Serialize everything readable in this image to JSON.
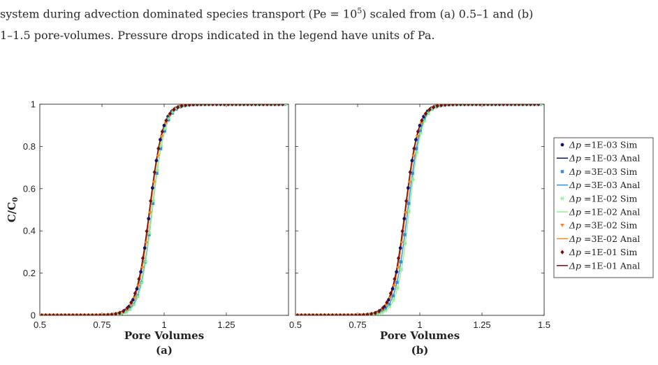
{
  "caption": {
    "line1_pre": "system during advection dominated species transport (Pe = 10",
    "line1_exp": "5",
    "line1_post": ") scaled from (a) 0.5–1 and (b)",
    "line2": "1–1.5 pore-volumes. Pressure drops indicated in the legend have units of Pa."
  },
  "chart_data": [
    {
      "type": "line",
      "panel_label": "(a)",
      "xlabel": "Pore Volumes",
      "ylabel": "C/C",
      "ylabel_sub": "0",
      "xlim": [
        0.5,
        1.5
      ],
      "ylim": [
        0,
        1
      ],
      "xticks": [
        0.5,
        0.75,
        1,
        1.25
      ],
      "xtick_labels": [
        "0.5",
        "0.75",
        "1",
        "1.25"
      ],
      "yticks": [
        0,
        0.2,
        0.4,
        0.6,
        0.8,
        1
      ],
      "ytick_labels": [
        "0",
        "0.2",
        "0.4",
        "0.6",
        "0.8",
        "1"
      ],
      "curve_model": "S-shaped breakthrough curve, C/C0 ≈ 0.5 at about 0.95 pore volumes, ≈ 0 at 0.5–0.6, ≈ 1 at 1.5",
      "series": [
        {
          "dp": "1E-03",
          "color": "#0b1473",
          "marker": "dot",
          "center": 0.942,
          "width": 0.106
        },
        {
          "dp": "3E-03",
          "color": "#2f8fe0",
          "marker": "square",
          "center": 0.952,
          "width": 0.104
        },
        {
          "dp": "1E-02",
          "color": "#8ff08f",
          "marker": "asterisk",
          "center": 0.953,
          "width": 0.101
        },
        {
          "dp": "3E-02",
          "color": "#f0891e",
          "marker": "triangle",
          "center": 0.945,
          "width": 0.106
        },
        {
          "dp": "1E-01",
          "color": "#7a0a0a",
          "marker": "diamond",
          "center": 0.941,
          "width": 0.108
        }
      ]
    },
    {
      "type": "line",
      "panel_label": "(b)",
      "xlabel": "Pore Volumes",
      "xlim": [
        0.5,
        1.5
      ],
      "ylim": [
        0,
        1
      ],
      "xticks": [
        0.5,
        0.75,
        1,
        1.25,
        1.5
      ],
      "xtick_labels": [
        "0.5",
        "0.75",
        "1",
        "1.25",
        "1.5"
      ],
      "yticks": [
        0,
        0.2,
        0.4,
        0.6,
        0.8,
        1
      ],
      "series": [
        {
          "dp": "1E-03",
          "color": "#0b1473",
          "marker": "dot",
          "center": 0.942,
          "width": 0.106
        },
        {
          "dp": "3E-03",
          "color": "#2f8fe0",
          "marker": "square",
          "center": 0.952,
          "width": 0.104
        },
        {
          "dp": "1E-02",
          "color": "#8ff08f",
          "marker": "asterisk",
          "center": 0.958,
          "width": 0.1
        },
        {
          "dp": "3E-02",
          "color": "#f0891e",
          "marker": "triangle",
          "center": 0.945,
          "width": 0.106
        },
        {
          "dp": "1E-01",
          "color": "#7a0a0a",
          "marker": "diamond",
          "center": 0.941,
          "width": 0.108
        }
      ]
    }
  ],
  "legend": {
    "placement": "right",
    "entries": [
      {
        "symbol": "Δp",
        "text": " =1E-03 Sim",
        "kind": "marker",
        "color": "#0b1473",
        "marker": "dot"
      },
      {
        "symbol": "Δp",
        "text": " =1E-03 Anal",
        "kind": "line",
        "color": "#0b1473"
      },
      {
        "symbol": "Δp",
        "text": " =3E-03 Sim",
        "kind": "marker",
        "color": "#2f8fe0",
        "marker": "square"
      },
      {
        "symbol": "Δp",
        "text": " =3E-03 Anal",
        "kind": "line",
        "color": "#2f8fe0"
      },
      {
        "symbol": "Δp",
        "text": " =1E-02 Sim",
        "kind": "marker",
        "color": "#8ff08f",
        "marker": "asterisk"
      },
      {
        "symbol": "Δp",
        "text": " =1E-02 Anal",
        "kind": "line",
        "color": "#8ff08f"
      },
      {
        "symbol": "Δp",
        "text": " =3E-02 Sim",
        "kind": "marker",
        "color": "#f0891e",
        "marker": "triangle"
      },
      {
        "symbol": "Δp",
        "text": " =3E-02 Anal",
        "kind": "line",
        "color": "#f0891e"
      },
      {
        "symbol": "Δp",
        "text": " =1E-01 Sim",
        "kind": "marker",
        "color": "#7a0a0a",
        "marker": "diamond"
      },
      {
        "symbol": "Δp",
        "text": " =1E-01 Anal",
        "kind": "line",
        "color": "#7a0a0a"
      }
    ]
  }
}
